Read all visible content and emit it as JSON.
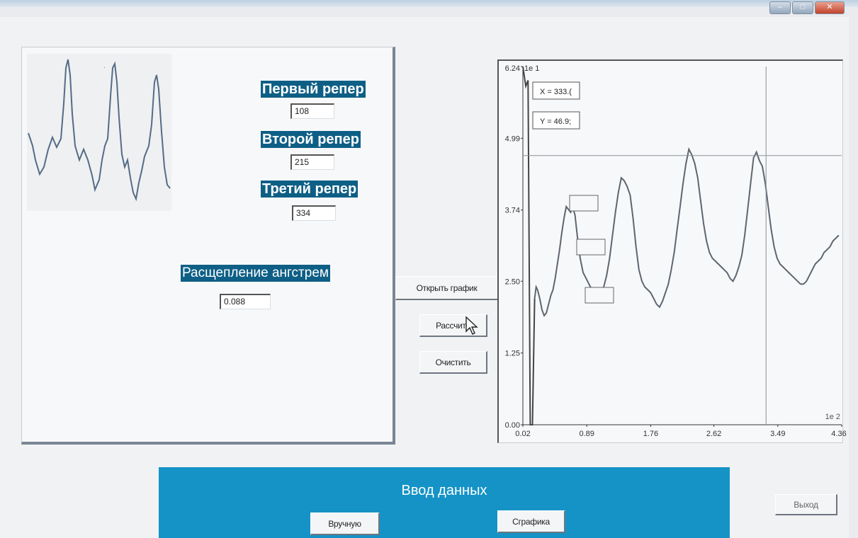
{
  "window": {
    "min_glyph": "–",
    "max_glyph": "□",
    "close_glyph": "✕"
  },
  "fields": {
    "first_label": "Первый репер",
    "first_value": "108",
    "second_label": "Второй репер",
    "second_value": "215",
    "third_label": "Третий репер",
    "third_value": "334",
    "split_label": "Расщепление ангстрем",
    "split_value": "0.088"
  },
  "buttons": {
    "open_chart": "Открыть график",
    "calculate": "Рассчита",
    "clear": "Очистить"
  },
  "bottom": {
    "title": "Ввод данных",
    "manual": "Вручную",
    "from_chart": "Сграфика",
    "exit": "Выход"
  },
  "chart_data": {
    "type": "line",
    "y_exponent_label": "1e 1",
    "x_exponent_label": "1e 2",
    "yticks": [
      "0.00",
      "1.25",
      "2.50",
      "3.74",
      "4.99",
      "6.24"
    ],
    "ytick_values": [
      0,
      1.25,
      2.5,
      3.74,
      4.99,
      6.24
    ],
    "xticks": [
      "0.02",
      "0.89",
      "1.76",
      "2.62",
      "3.49",
      "4.36"
    ],
    "xtick_values": [
      0.02,
      0.89,
      1.76,
      2.62,
      3.49,
      4.36
    ],
    "xlim": [
      0.02,
      4.36
    ],
    "ylim": [
      0,
      6.24
    ],
    "cursor": {
      "x_value": 3.33,
      "y_value": 4.69,
      "x_readout": "X = 333.(",
      "y_readout": "Y = 46.9;"
    },
    "x": [
      0.18,
      0.2,
      0.22,
      0.25,
      0.28,
      0.31,
      0.34,
      0.37,
      0.4,
      0.43,
      0.46,
      0.49,
      0.52,
      0.55,
      0.58,
      0.61,
      0.64,
      0.67,
      0.7,
      0.73,
      0.76,
      0.8,
      0.84,
      0.88,
      0.92,
      0.96,
      1.0,
      1.04,
      1.08,
      1.12,
      1.16,
      1.2,
      1.24,
      1.28,
      1.32,
      1.36,
      1.4,
      1.44,
      1.48,
      1.52,
      1.56,
      1.6,
      1.64,
      1.68,
      1.72,
      1.76,
      1.8,
      1.84,
      1.88,
      1.92,
      1.96,
      2.0,
      2.04,
      2.08,
      2.12,
      2.16,
      2.2,
      2.24,
      2.28,
      2.32,
      2.36,
      2.4,
      2.44,
      2.48,
      2.52,
      2.56,
      2.6,
      2.64,
      2.68,
      2.72,
      2.76,
      2.8,
      2.84,
      2.88,
      2.92,
      2.96,
      3.0,
      3.04,
      3.08,
      3.12,
      3.16,
      3.2,
      3.24,
      3.28,
      3.32,
      3.36,
      3.4,
      3.44,
      3.48,
      3.52,
      3.56,
      3.6,
      3.64,
      3.68,
      3.72,
      3.76,
      3.8,
      3.84,
      3.88,
      3.92,
      3.96,
      4.0,
      4.04,
      4.08,
      4.12,
      4.16,
      4.2,
      4.24,
      4.28,
      4.32
    ],
    "y": [
      2.2,
      2.4,
      2.35,
      2.2,
      2.0,
      1.9,
      1.95,
      2.1,
      2.25,
      2.35,
      2.55,
      2.8,
      3.05,
      3.35,
      3.6,
      3.8,
      3.75,
      3.7,
      3.78,
      3.65,
      3.3,
      2.9,
      2.65,
      2.55,
      2.45,
      2.35,
      2.2,
      2.15,
      2.25,
      2.4,
      2.6,
      2.9,
      3.3,
      3.7,
      4.05,
      4.3,
      4.25,
      4.15,
      4.0,
      3.6,
      3.1,
      2.7,
      2.5,
      2.4,
      2.35,
      2.3,
      2.2,
      2.1,
      2.05,
      2.15,
      2.3,
      2.45,
      2.7,
      3.0,
      3.4,
      3.8,
      4.2,
      4.55,
      4.8,
      4.7,
      4.55,
      4.3,
      3.9,
      3.5,
      3.2,
      3.0,
      2.9,
      2.85,
      2.8,
      2.75,
      2.7,
      2.65,
      2.55,
      2.5,
      2.6,
      2.75,
      2.95,
      3.3,
      3.75,
      4.2,
      4.65,
      4.75,
      4.6,
      4.5,
      4.2,
      3.8,
      3.4,
      3.1,
      2.9,
      2.8,
      2.75,
      2.7,
      2.65,
      2.6,
      2.55,
      2.5,
      2.45,
      2.45,
      2.5,
      2.6,
      2.7,
      2.8,
      2.85,
      2.9,
      3.0,
      3.05,
      3.1,
      3.2,
      3.25,
      3.3
    ],
    "spike_x": [
      0.02,
      0.06,
      0.09,
      0.12,
      0.15,
      0.18
    ],
    "spike_y": [
      6.24,
      5.9,
      6.0,
      0.0,
      0.0,
      2.2
    ]
  }
}
